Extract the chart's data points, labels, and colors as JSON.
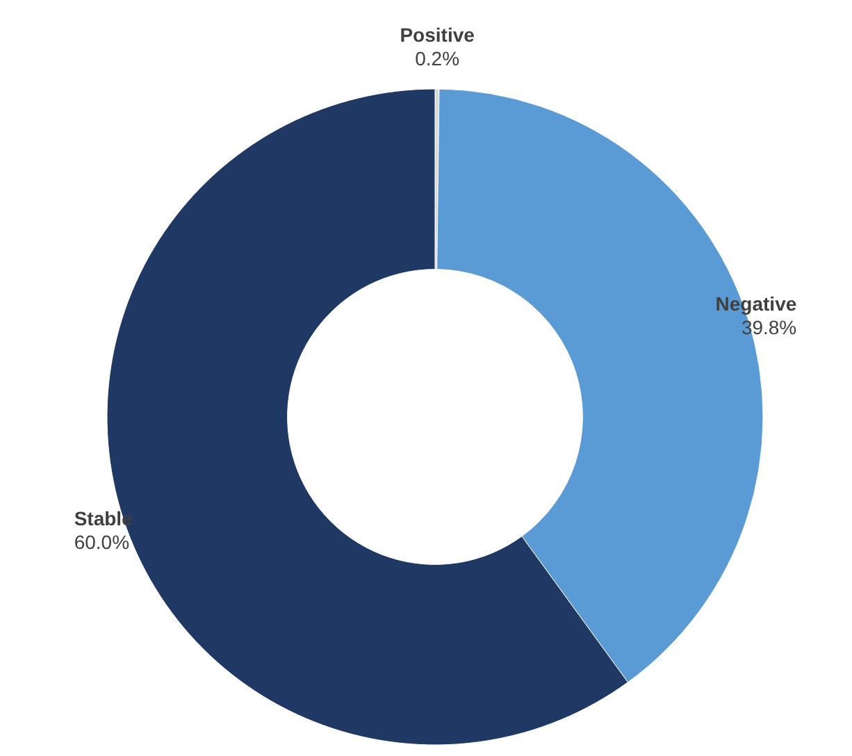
{
  "chart_data": {
    "type": "donut",
    "categories": [
      "Positive",
      "Negative",
      "Stable"
    ],
    "values": [
      0.2,
      39.8,
      60.0
    ],
    "colors": [
      "#d9d9d9",
      "#5b9bd5",
      "#1f3864"
    ],
    "value_labels": [
      "0.2%",
      "39.8%",
      "60.0%"
    ]
  }
}
